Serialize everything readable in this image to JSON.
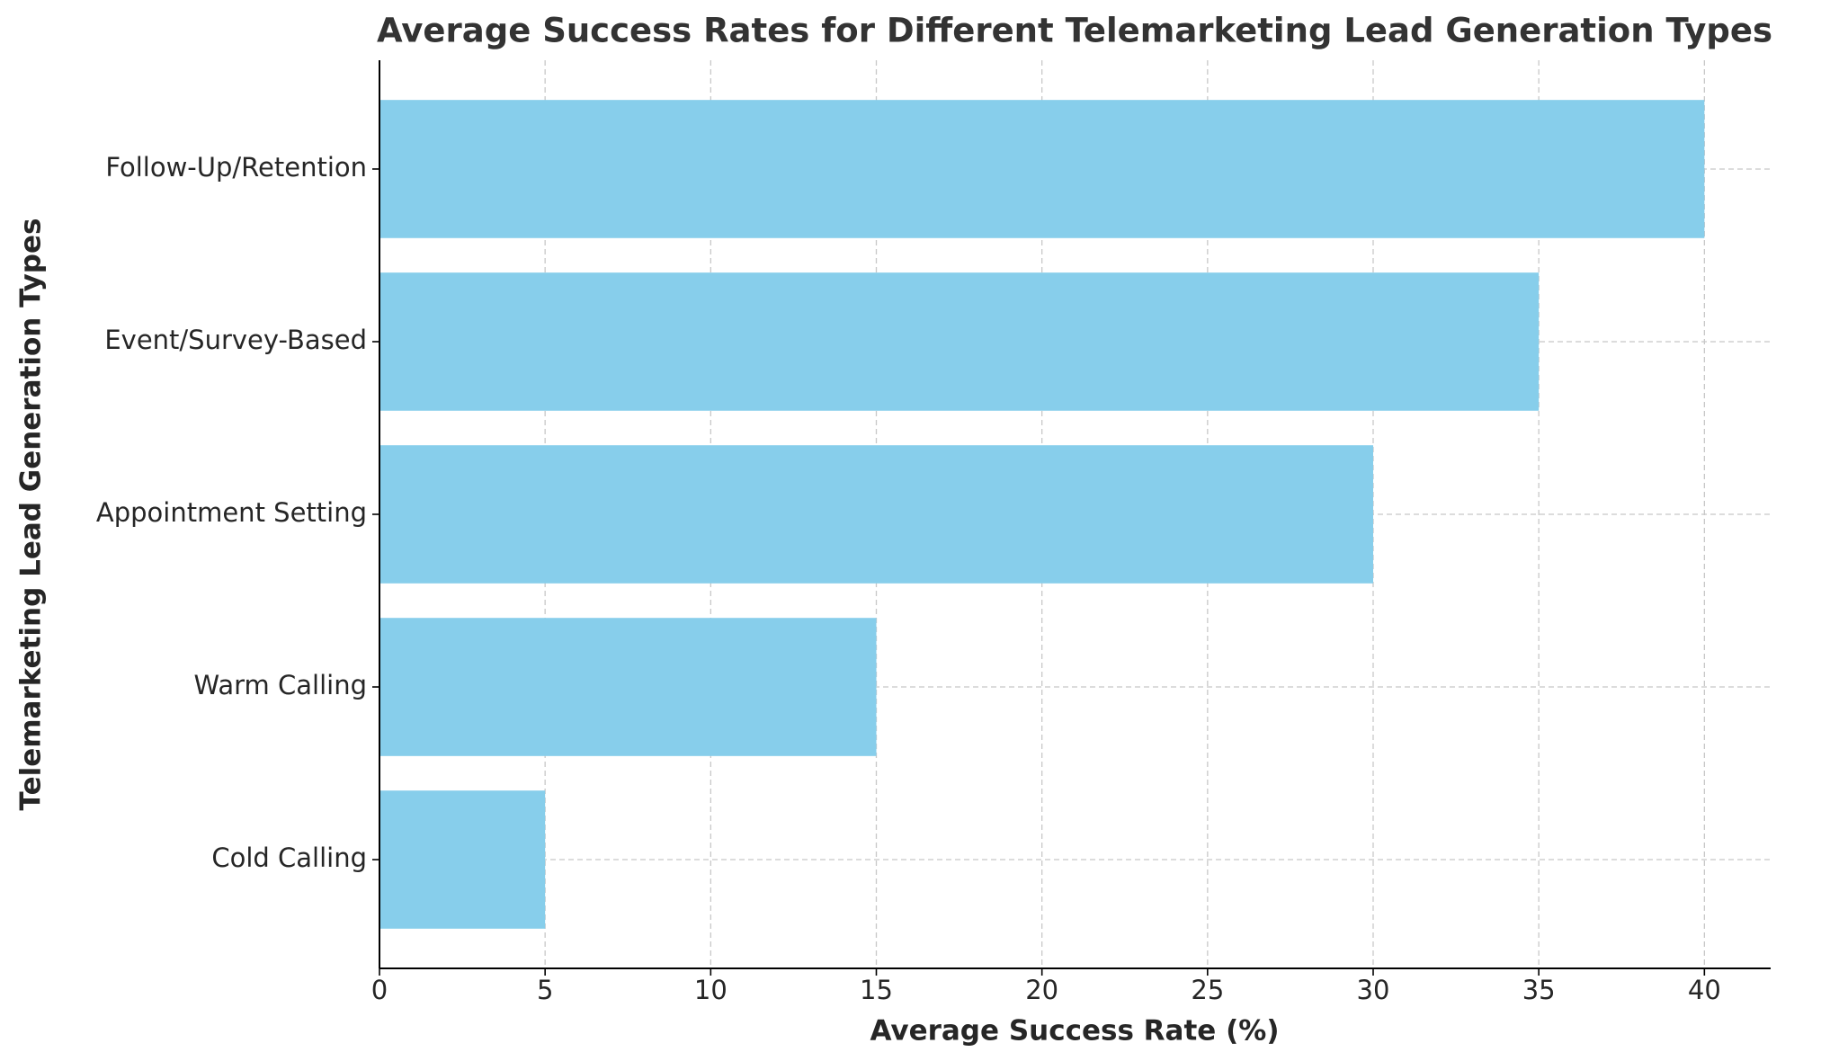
{
  "chart_data": {
    "type": "barh",
    "title": "Average Success Rates for Different Telemarketing Lead Generation Types",
    "x_label": "Average Success Rate (%)",
    "y_label": "Telemarketing Lead Generation Types",
    "categories": [
      "Cold Calling",
      "Warm Calling",
      "Appointment Setting",
      "Event/Survey-Based",
      "Follow-Up/Retention"
    ],
    "values": [
      5,
      15,
      30,
      35,
      40
    ],
    "color": "#87ceeb",
    "xlim": [
      0,
      42
    ],
    "xticks": [
      0,
      5,
      10,
      15,
      20,
      25,
      30,
      35,
      40
    ],
    "grid": true
  }
}
